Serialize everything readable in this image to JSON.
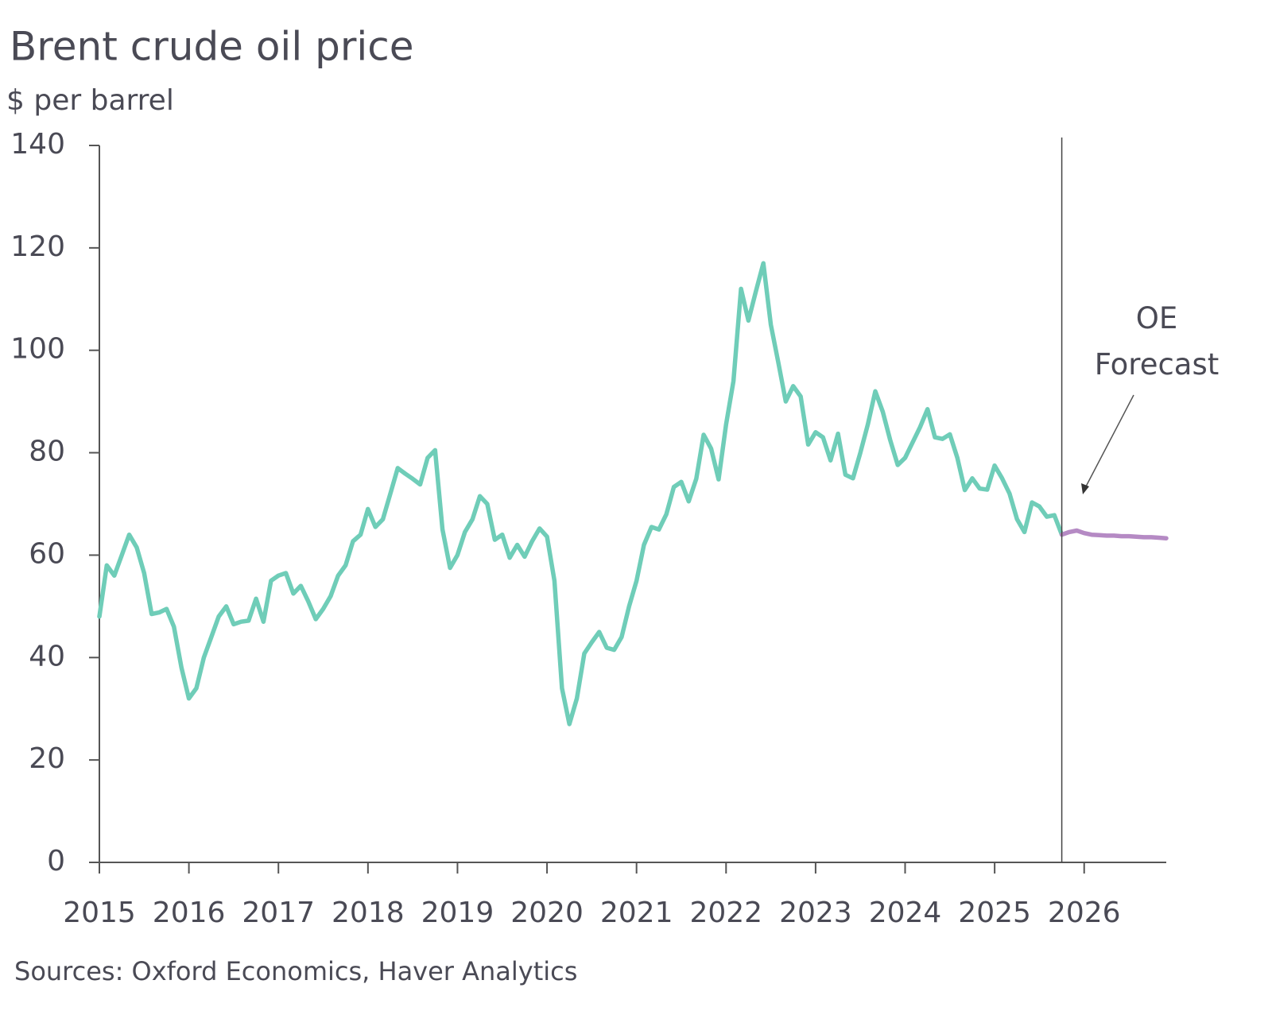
{
  "chart_data": {
    "type": "line",
    "title": "Brent crude oil price",
    "subtitle": "$ per barrel",
    "source": "Sources: Oxford Economics, Haver Analytics",
    "annotation": "OE Forecast",
    "x": [
      2015,
      2015.083,
      2015.167,
      2015.25,
      2015.333,
      2015.417,
      2015.5,
      2015.583,
      2015.667,
      2015.75,
      2015.833,
      2015.917,
      2016,
      2016.083,
      2016.167,
      2016.25,
      2016.333,
      2016.417,
      2016.5,
      2016.583,
      2016.667,
      2016.75,
      2016.833,
      2016.917,
      2017,
      2017.083,
      2017.167,
      2017.25,
      2017.333,
      2017.417,
      2017.5,
      2017.583,
      2017.667,
      2017.75,
      2017.833,
      2017.917,
      2018,
      2018.083,
      2018.167,
      2018.25,
      2018.333,
      2018.417,
      2018.5,
      2018.583,
      2018.667,
      2018.75,
      2018.833,
      2018.917,
      2019,
      2019.083,
      2019.167,
      2019.25,
      2019.333,
      2019.417,
      2019.5,
      2019.583,
      2019.667,
      2019.75,
      2019.833,
      2019.917,
      2020,
      2020.083,
      2020.167,
      2020.25,
      2020.333,
      2020.417,
      2020.5,
      2020.583,
      2020.667,
      2020.75,
      2020.833,
      2020.917,
      2021,
      2021.083,
      2021.167,
      2021.25,
      2021.333,
      2021.417,
      2021.5,
      2021.583,
      2021.667,
      2021.75,
      2021.833,
      2021.917,
      2022,
      2022.083,
      2022.167,
      2022.25,
      2022.333,
      2022.417,
      2022.5,
      2022.583,
      2022.667,
      2022.75,
      2022.833,
      2022.917,
      2023,
      2023.083,
      2023.167,
      2023.25,
      2023.333,
      2023.417,
      2023.5,
      2023.583,
      2023.667,
      2023.75,
      2023.833,
      2023.917,
      2024,
      2024.083,
      2024.167,
      2024.25,
      2024.333,
      2024.417,
      2024.5,
      2024.583,
      2024.667,
      2024.75,
      2024.833,
      2024.917,
      2025,
      2025.083,
      2025.167,
      2025.25,
      2025.333,
      2025.417,
      2025.5,
      2025.583,
      2025.667,
      2025.75,
      2025.833,
      2025.917,
      2026,
      2026.083,
      2026.167,
      2026.25,
      2026.333,
      2026.417,
      2026.5,
      2026.583,
      2026.667,
      2026.75,
      2026.833,
      2026.917
    ],
    "series": [
      {
        "color": "#6fcdb8",
        "values": [
          48,
          58,
          56,
          60,
          64,
          61.5,
          56.5,
          48.5,
          48.8,
          49.5,
          46,
          38,
          32,
          34,
          40,
          44,
          48,
          50,
          46.5,
          47,
          47.2,
          51.5,
          47,
          55,
          56,
          56.5,
          52.5,
          54,
          51,
          47.5,
          49.5,
          52,
          56,
          58,
          62.7,
          64,
          69,
          65.5,
          67,
          72,
          77,
          75.9,
          74.9,
          73.8,
          79,
          80.5,
          65,
          57.5,
          60,
          64.5,
          67,
          71.5,
          70,
          63,
          64,
          59.5,
          62,
          59.7,
          62.7,
          65.2,
          63.6,
          55,
          34,
          27,
          32,
          40.8,
          43,
          45,
          41.9,
          41.5,
          44,
          50,
          55,
          62,
          65.5,
          65,
          68,
          73.3,
          74.3,
          70.5,
          74.9,
          83.5,
          80.8,
          74.8,
          85.5,
          94,
          112,
          105.8,
          111.5,
          117,
          105,
          97.7,
          90,
          93,
          91,
          81.6,
          84,
          83,
          78.5,
          83.7,
          75.7,
          75,
          80,
          85.5,
          92,
          88,
          82.5,
          77.6,
          79,
          82,
          85,
          88.5,
          83,
          82.7,
          83.6,
          79,
          72.7,
          75,
          73,
          72.8,
          77.5,
          75,
          72,
          67,
          64.5,
          70.3,
          69.5,
          67.5,
          67.8,
          64,
          null,
          null,
          null,
          null,
          null,
          null,
          null,
          null,
          null,
          null,
          null,
          null,
          null,
          null
        ]
      },
      {
        "color": "#b58ac4",
        "values": [
          null,
          null,
          null,
          null,
          null,
          null,
          null,
          null,
          null,
          null,
          null,
          null,
          null,
          null,
          null,
          null,
          null,
          null,
          null,
          null,
          null,
          null,
          null,
          null,
          null,
          null,
          null,
          null,
          null,
          null,
          null,
          null,
          null,
          null,
          null,
          null,
          null,
          null,
          null,
          null,
          null,
          null,
          null,
          null,
          null,
          null,
          null,
          null,
          null,
          null,
          null,
          null,
          null,
          null,
          null,
          null,
          null,
          null,
          null,
          null,
          null,
          null,
          null,
          null,
          null,
          null,
          null,
          null,
          null,
          null,
          null,
          null,
          null,
          null,
          null,
          null,
          null,
          null,
          null,
          null,
          null,
          null,
          null,
          null,
          null,
          null,
          null,
          null,
          null,
          null,
          null,
          null,
          null,
          null,
          null,
          null,
          null,
          null,
          null,
          null,
          null,
          null,
          null,
          null,
          null,
          null,
          null,
          null,
          null,
          null,
          null,
          null,
          null,
          null,
          null,
          null,
          null,
          null,
          null,
          null,
          null,
          null,
          null,
          null,
          null,
          null,
          null,
          null,
          null,
          64,
          64.5,
          64.8,
          64.3,
          64,
          63.9,
          63.8,
          63.8,
          63.7,
          63.7,
          63.6,
          63.5,
          63.5,
          63.4,
          63.3
        ]
      }
    ],
    "xlim": [
      2015,
      2026.917
    ],
    "xticks": [
      2015,
      2016,
      2017,
      2018,
      2019,
      2020,
      2021,
      2022,
      2023,
      2024,
      2025,
      2026
    ],
    "ylim": [
      0,
      140
    ],
    "yticks": [
      0,
      20,
      40,
      60,
      80,
      100,
      120,
      140
    ],
    "grid": false
  }
}
